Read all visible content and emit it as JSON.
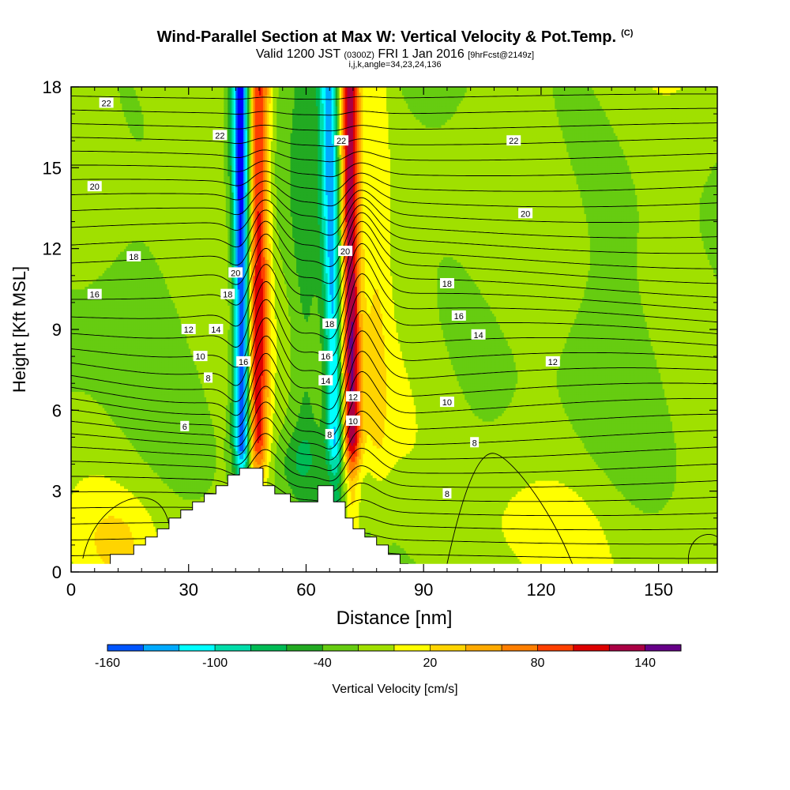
{
  "title": {
    "main": "Wind-Parallel Section at Max W: Vertical Velocity & Pot.Temp.",
    "copyright": "(C)",
    "valid_prefix": "Valid 1200 JST",
    "valid_utc": "(0300Z)",
    "valid_date": "FRI 1 Jan 2016",
    "forecast": "[9hrFcst@2149z]",
    "indices": "i,j,k,angle=34,23,24,136"
  },
  "chart_data": {
    "type": "heatmap",
    "xlabel": "Distance [nm]",
    "ylabel": "Height [Kft MSL]",
    "xlim": [
      0,
      165
    ],
    "ylim": [
      0,
      18
    ],
    "x_ticks": [
      0,
      30,
      60,
      90,
      120,
      150
    ],
    "y_ticks": [
      0,
      3,
      6,
      9,
      12,
      15,
      18
    ],
    "filled_field": "Vertical Velocity [cm/s]",
    "contour_field": "potential temperature",
    "colorbar": {
      "label": "Vertical Velocity [cm/s]",
      "tick_labels": [
        "-160",
        "-100",
        "-40",
        "20",
        "80",
        "140"
      ],
      "tick_values": [
        -160,
        -100,
        -40,
        20,
        80,
        140
      ],
      "levels": [
        -160,
        -140,
        -120,
        -100,
        -80,
        -60,
        -40,
        -20,
        0,
        20,
        40,
        60,
        80,
        100,
        120,
        140,
        160
      ],
      "colors": [
        "#0000ff",
        "#0055ff",
        "#00aaff",
        "#00ffff",
        "#00ddaa",
        "#00bb55",
        "#22aa22",
        "#66cc11",
        "#a0e000",
        "#ffff00",
        "#ffd400",
        "#ffaa00",
        "#ff7f00",
        "#ff4000",
        "#dd0000",
        "#aa0044",
        "#660088"
      ]
    },
    "background_color": "#a0e000",
    "features": [
      {
        "kind": "updraft_band",
        "x_bottom": 47,
        "x_top": 48,
        "peak_cm_s": 120
      },
      {
        "kind": "downdraft_band",
        "x_bottom": 44,
        "x_top": 43,
        "peak_cm_s": -150
      },
      {
        "kind": "updraft_band",
        "x_bottom": 72,
        "x_top": 71,
        "peak_cm_s": 140
      },
      {
        "kind": "downdraft_band",
        "x_bottom": 68,
        "x_top": 65,
        "peak_cm_s": -100
      }
    ],
    "terrain": {
      "x_nm": [
        10,
        10,
        16,
        16,
        19,
        19,
        22,
        22,
        25,
        25,
        28,
        28,
        31,
        31,
        34,
        34,
        37,
        37,
        40,
        40,
        43,
        43,
        49,
        49,
        52,
        52,
        56,
        56,
        63,
        63,
        67,
        67,
        70,
        70,
        72,
        72,
        75,
        75,
        78,
        78,
        81,
        81,
        84,
        84,
        86
      ],
      "height_kft": [
        0,
        0.65,
        0.65,
        1.0,
        1.0,
        1.3,
        1.3,
        1.6,
        1.6,
        2.0,
        2.0,
        2.3,
        2.3,
        2.6,
        2.6,
        2.9,
        2.9,
        3.2,
        3.2,
        3.6,
        3.6,
        3.85,
        3.85,
        3.2,
        3.2,
        2.9,
        2.9,
        2.6,
        2.6,
        3.2,
        3.2,
        2.6,
        2.6,
        2.0,
        2.0,
        1.6,
        1.6,
        1.3,
        1.3,
        1.0,
        1.0,
        0.65,
        0.65,
        0.3,
        0.3
      ]
    },
    "contour_labels": [
      {
        "text": "22",
        "x": 9,
        "y": 17.4
      },
      {
        "text": "22",
        "x": 38,
        "y": 16.2
      },
      {
        "text": "22",
        "x": 69,
        "y": 16.0
      },
      {
        "text": "22",
        "x": 113,
        "y": 16.0
      },
      {
        "text": "20",
        "x": 6,
        "y": 14.3
      },
      {
        "text": "20",
        "x": 116,
        "y": 13.3
      },
      {
        "text": "20",
        "x": 70,
        "y": 11.9
      },
      {
        "text": "20",
        "x": 42,
        "y": 11.1
      },
      {
        "text": "18",
        "x": 16,
        "y": 11.7
      },
      {
        "text": "18",
        "x": 40,
        "y": 10.3
      },
      {
        "text": "18",
        "x": 66,
        "y": 9.2
      },
      {
        "text": "18",
        "x": 96,
        "y": 10.7
      },
      {
        "text": "16",
        "x": 6,
        "y": 10.3
      },
      {
        "text": "16",
        "x": 44,
        "y": 7.8
      },
      {
        "text": "16",
        "x": 65,
        "y": 8.0
      },
      {
        "text": "16",
        "x": 99,
        "y": 9.5
      },
      {
        "text": "14",
        "x": 37,
        "y": 9.0
      },
      {
        "text": "14",
        "x": 65,
        "y": 7.1
      },
      {
        "text": "14",
        "x": 104,
        "y": 8.8
      },
      {
        "text": "12",
        "x": 30,
        "y": 9.0
      },
      {
        "text": "12",
        "x": 72,
        "y": 6.5
      },
      {
        "text": "12",
        "x": 123,
        "y": 7.8
      },
      {
        "text": "10",
        "x": 33,
        "y": 8.0
      },
      {
        "text": "10",
        "x": 72,
        "y": 5.6
      },
      {
        "text": "10",
        "x": 96,
        "y": 6.3
      },
      {
        "text": "8",
        "x": 35,
        "y": 7.2
      },
      {
        "text": "8",
        "x": 66,
        "y": 5.1
      },
      {
        "text": "8",
        "x": 103,
        "y": 4.8
      },
      {
        "text": "8",
        "x": 96,
        "y": 2.9
      },
      {
        "text": "6",
        "x": 29,
        "y": 5.4
      }
    ]
  }
}
